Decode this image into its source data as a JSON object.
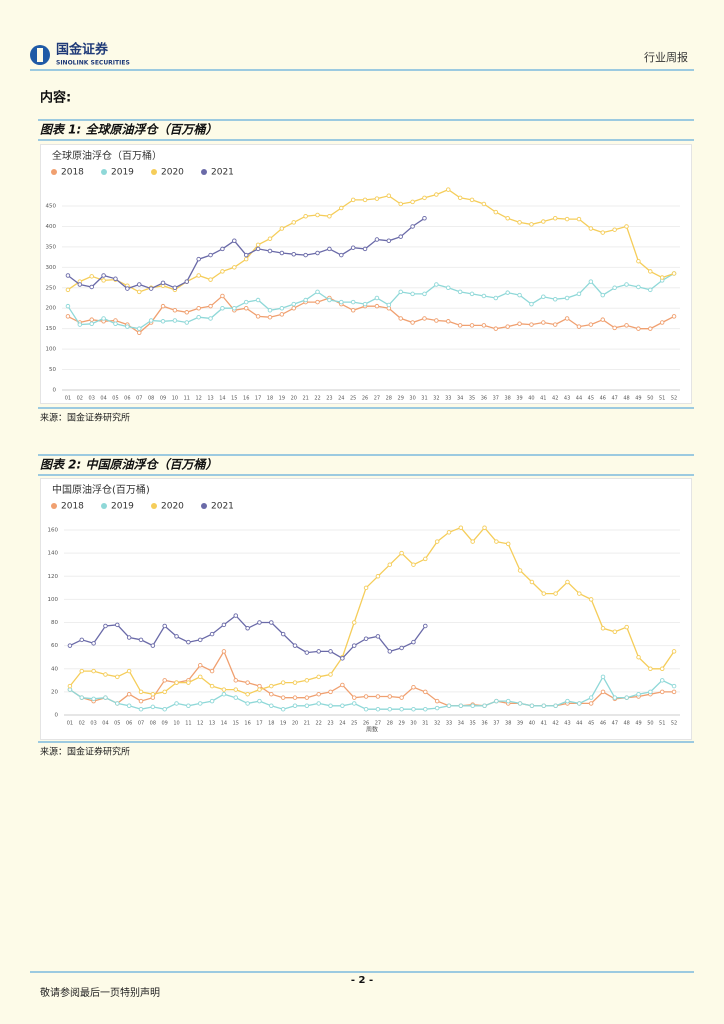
{
  "header": {
    "logo_cn": "国金证券",
    "logo_en": "SINOLINK SECURITIES",
    "report_type": "行业周报"
  },
  "content_label": "内容:",
  "figures": [
    {
      "heading": "图表 1: 全球原油浮仓（百万桶）",
      "source": "来源：国金证券研究所"
    },
    {
      "heading": "图表 2: 中国原油浮仓（百万桶）",
      "source": "来源：国金证券研究所"
    }
  ],
  "chart_data": [
    {
      "type": "line",
      "title": "全球原油浮仓（百万桶）",
      "categories": [
        "01",
        "02",
        "03",
        "04",
        "05",
        "06",
        "07",
        "08",
        "09",
        "10",
        "11",
        "12",
        "13",
        "14",
        "15",
        "16",
        "17",
        "18",
        "19",
        "20",
        "21",
        "22",
        "23",
        "24",
        "25",
        "26",
        "27",
        "28",
        "29",
        "30",
        "31",
        "32",
        "33",
        "34",
        "35",
        "36",
        "37",
        "38",
        "39",
        "40",
        "41",
        "42",
        "43",
        "44",
        "45",
        "46",
        "47",
        "48",
        "49",
        "50",
        "51",
        "52"
      ],
      "ylim": [
        0,
        450
      ],
      "yticks": [
        0,
        50,
        100,
        150,
        200,
        250,
        300,
        350,
        400,
        450
      ],
      "series": [
        {
          "name": "2018",
          "color": "#f0a070",
          "values": [
            180,
            165,
            172,
            168,
            170,
            160,
            140,
            165,
            205,
            195,
            190,
            200,
            205,
            230,
            195,
            200,
            180,
            178,
            185,
            200,
            215,
            215,
            225,
            210,
            195,
            205,
            205,
            200,
            175,
            165,
            175,
            170,
            168,
            158,
            158,
            158,
            150,
            155,
            162,
            160,
            165,
            160,
            175,
            155,
            160,
            172,
            152,
            158,
            150,
            150,
            165,
            180
          ]
        },
        {
          "name": "2019",
          "color": "#8fd8d8",
          "values": [
            205,
            160,
            162,
            175,
            162,
            155,
            150,
            170,
            168,
            170,
            165,
            178,
            175,
            200,
            200,
            215,
            220,
            195,
            200,
            210,
            220,
            240,
            220,
            215,
            215,
            210,
            225,
            208,
            240,
            235,
            235,
            258,
            250,
            240,
            235,
            230,
            225,
            238,
            232,
            210,
            228,
            222,
            225,
            235,
            265,
            232,
            250,
            258,
            252,
            245,
            268,
            285
          ]
        },
        {
          "name": "2020",
          "color": "#f5cd5a",
          "values": [
            245,
            265,
            278,
            268,
            270,
            255,
            240,
            250,
            255,
            245,
            265,
            280,
            270,
            290,
            300,
            320,
            355,
            370,
            395,
            410,
            425,
            428,
            425,
            445,
            465,
            465,
            468,
            475,
            455,
            460,
            470,
            478,
            490,
            470,
            465,
            455,
            435,
            420,
            410,
            405,
            412,
            420,
            418,
            418,
            395,
            385,
            392,
            400,
            315,
            290,
            275,
            285
          ]
        },
        {
          "name": "2021",
          "color": "#6a6aa8",
          "values": [
            280,
            258,
            252,
            280,
            272,
            248,
            258,
            248,
            262,
            250,
            265,
            320,
            330,
            345,
            365,
            330,
            345,
            340,
            335,
            332,
            330,
            335,
            345,
            330,
            348,
            345,
            368,
            365,
            375,
            400,
            420,
            null,
            null,
            null,
            null,
            null,
            null,
            null,
            null,
            null,
            null,
            null,
            null,
            null,
            null,
            null,
            null,
            null,
            null,
            null,
            null,
            null
          ]
        }
      ]
    },
    {
      "type": "line",
      "title": "中国原油浮仓(百万桶)",
      "x_label": "周数",
      "categories": [
        "01",
        "02",
        "03",
        "04",
        "05",
        "06",
        "07",
        "08",
        "09",
        "10",
        "11",
        "12",
        "13",
        "14",
        "15",
        "16",
        "17",
        "18",
        "19",
        "20",
        "21",
        "22",
        "23",
        "24",
        "25",
        "26",
        "27",
        "28",
        "29",
        "30",
        "31",
        "32",
        "33",
        "34",
        "35",
        "36",
        "37",
        "38",
        "39",
        "40",
        "41",
        "42",
        "43",
        "44",
        "45",
        "46",
        "47",
        "48",
        "49",
        "50",
        "51",
        "52"
      ],
      "ylim": [
        0,
        160
      ],
      "yticks": [
        0,
        20,
        40,
        60,
        80,
        100,
        120,
        140,
        160
      ],
      "series": [
        {
          "name": "2018",
          "color": "#f0a070",
          "values": [
            22,
            15,
            12,
            15,
            10,
            18,
            12,
            15,
            30,
            28,
            30,
            43,
            38,
            55,
            30,
            28,
            25,
            18,
            15,
            15,
            15,
            18,
            20,
            26,
            15,
            16,
            16,
            16,
            15,
            24,
            20,
            12,
            8,
            8,
            9,
            8,
            12,
            10,
            10,
            8,
            8,
            8,
            10,
            10,
            10,
            20,
            14,
            15,
            16,
            18,
            20,
            20
          ]
        },
        {
          "name": "2019",
          "color": "#8fd8d8",
          "values": [
            22,
            15,
            14,
            15,
            10,
            8,
            5,
            7,
            5,
            10,
            8,
            10,
            12,
            18,
            15,
            10,
            12,
            8,
            5,
            8,
            8,
            10,
            8,
            8,
            10,
            5,
            5,
            5,
            5,
            5,
            5,
            6,
            8,
            8,
            8,
            8,
            12,
            12,
            10,
            8,
            8,
            8,
            12,
            10,
            15,
            33,
            15,
            15,
            18,
            20,
            30,
            25
          ]
        },
        {
          "name": "2020",
          "color": "#f5cd5a",
          "values": [
            25,
            38,
            38,
            35,
            33,
            38,
            20,
            18,
            20,
            28,
            28,
            33,
            25,
            22,
            22,
            18,
            22,
            25,
            28,
            28,
            30,
            33,
            35,
            50,
            80,
            110,
            120,
            130,
            140,
            130,
            135,
            150,
            158,
            162,
            150,
            162,
            150,
            148,
            125,
            115,
            105,
            105,
            115,
            105,
            100,
            75,
            72,
            76,
            50,
            40,
            40,
            55
          ]
        },
        {
          "name": "2021",
          "color": "#6a6aa8",
          "values": [
            60,
            65,
            62,
            77,
            78,
            67,
            65,
            60,
            77,
            68,
            63,
            65,
            70,
            78,
            86,
            75,
            80,
            80,
            70,
            60,
            54,
            55,
            55,
            49,
            60,
            66,
            68,
            55,
            58,
            63,
            77,
            null,
            null,
            null,
            null,
            null,
            null,
            null,
            null,
            null,
            null,
            null,
            null,
            null,
            null,
            null,
            null,
            null,
            null,
            null,
            null,
            null
          ]
        }
      ]
    }
  ],
  "page_number": "- 2 -",
  "footer": "敬请参阅最后一页特别声明"
}
